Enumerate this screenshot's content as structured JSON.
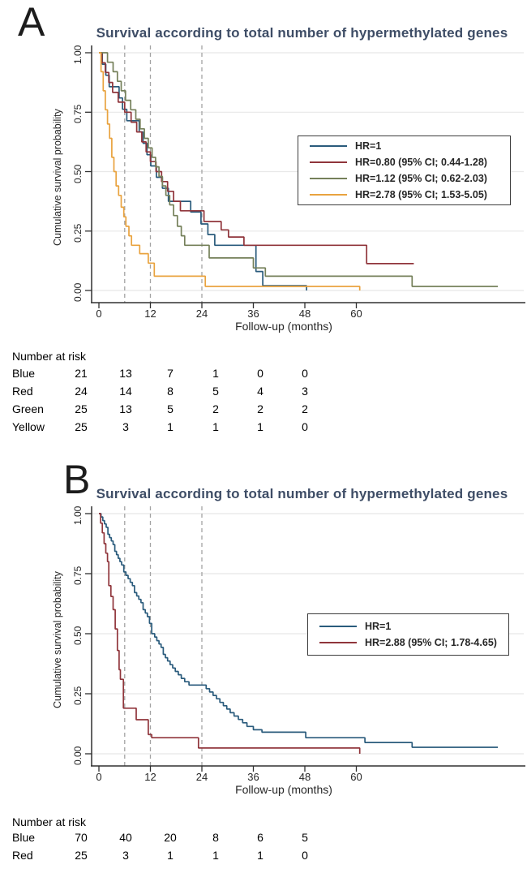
{
  "panel_letters": [
    "A",
    "B"
  ],
  "chart_data": [
    {
      "type": "line",
      "subtype": "kaplan-meier-step",
      "title": "Survival according to total number of hypermethylated genes",
      "xlabel": "Follow-up (months)",
      "ylabel": "Cumulative survival probability",
      "xlim": [
        0,
        99
      ],
      "ylim": [
        0,
        1
      ],
      "xticks": [
        0,
        12,
        24,
        36,
        48,
        60
      ],
      "yticks": [
        {
          "v": 1.0,
          "label": "1.00"
        },
        {
          "v": 0.75,
          "label": "0.75"
        },
        {
          "v": 0.5,
          "label": "0.50"
        },
        {
          "v": 0.25,
          "label": "0.25"
        },
        {
          "v": 0.0,
          "label": "0.00"
        }
      ],
      "dashed_guides_x": [
        6,
        12,
        24
      ],
      "grid": "horizontal",
      "legend_position": "right-middle-box",
      "series": [
        {
          "key": "blue",
          "group": "Blue",
          "name": "HR=1",
          "color": "#2a5b7c",
          "points": [
            [
              0,
              1.0
            ],
            [
              0.8,
              0.952
            ],
            [
              1.6,
              0.905
            ],
            [
              2.4,
              0.857
            ],
            [
              4.7,
              0.81
            ],
            [
              5.5,
              0.762
            ],
            [
              6.5,
              0.714
            ],
            [
              9.4,
              0.667
            ],
            [
              10.3,
              0.619
            ],
            [
              11.2,
              0.571
            ],
            [
              12.1,
              0.524
            ],
            [
              13.4,
              0.476
            ],
            [
              14.8,
              0.43
            ],
            [
              16.2,
              0.375
            ],
            [
              21.4,
              0.33
            ],
            [
              23.8,
              0.28
            ],
            [
              25.4,
              0.235
            ],
            [
              27.0,
              0.19
            ],
            [
              36.6,
              0.08
            ],
            [
              38.2,
              0.02
            ],
            [
              48.0,
              0.02
            ],
            [
              48.4,
              0.0
            ]
          ]
        },
        {
          "key": "red",
          "group": "Red",
          "name": "HR=0.80 (95% CI; 0.44-1.28)",
          "color": "#90353b",
          "points": [
            [
              0,
              1.0
            ],
            [
              0.7,
              0.958
            ],
            [
              1.5,
              0.917
            ],
            [
              2.3,
              0.875
            ],
            [
              3.2,
              0.833
            ],
            [
              4.5,
              0.792
            ],
            [
              6.0,
              0.75
            ],
            [
              7.5,
              0.708
            ],
            [
              8.8,
              0.667
            ],
            [
              10.0,
              0.625
            ],
            [
              11.0,
              0.583
            ],
            [
              12.0,
              0.542
            ],
            [
              13.3,
              0.5
            ],
            [
              14.6,
              0.458
            ],
            [
              16.0,
              0.417
            ],
            [
              17.4,
              0.375
            ],
            [
              19.0,
              0.335
            ],
            [
              24.5,
              0.29
            ],
            [
              28.5,
              0.255
            ],
            [
              30.2,
              0.225
            ],
            [
              33.8,
              0.19
            ],
            [
              62.4,
              0.113
            ],
            [
              73.4,
              0.113
            ]
          ]
        },
        {
          "key": "green",
          "group": "Green",
          "name": "HR=1.12 (95% CI; 0.62-2.03)",
          "color": "#75805a",
          "points": [
            [
              0,
              1.0
            ],
            [
              2.0,
              0.96
            ],
            [
              3.3,
              0.92
            ],
            [
              4.3,
              0.88
            ],
            [
              5.2,
              0.84
            ],
            [
              6.2,
              0.8
            ],
            [
              7.4,
              0.76
            ],
            [
              8.6,
              0.72
            ],
            [
              9.6,
              0.68
            ],
            [
              10.6,
              0.64
            ],
            [
              11.5,
              0.6
            ],
            [
              12.4,
              0.56
            ],
            [
              13.2,
              0.52
            ],
            [
              14.0,
              0.48
            ],
            [
              14.8,
              0.44
            ],
            [
              15.6,
              0.4
            ],
            [
              16.5,
              0.36
            ],
            [
              17.4,
              0.315
            ],
            [
              18.3,
              0.27
            ],
            [
              19.2,
              0.23
            ],
            [
              20.0,
              0.19
            ],
            [
              25.7,
              0.137
            ],
            [
              36.0,
              0.095
            ],
            [
              38.8,
              0.06
            ],
            [
              73.0,
              0.017
            ],
            [
              93.0,
              0.017
            ]
          ]
        },
        {
          "key": "yellow",
          "group": "Yellow",
          "name": "HR=2.78 (95% CI; 1.53-5.05)",
          "color": "#e9a33f",
          "points": [
            [
              0,
              1.0
            ],
            [
              0.5,
              0.92
            ],
            [
              1.0,
              0.84
            ],
            [
              1.5,
              0.76
            ],
            [
              2.0,
              0.7
            ],
            [
              2.5,
              0.64
            ],
            [
              3.0,
              0.56
            ],
            [
              3.5,
              0.5
            ],
            [
              4.0,
              0.44
            ],
            [
              4.6,
              0.4
            ],
            [
              5.2,
              0.35
            ],
            [
              5.8,
              0.31
            ],
            [
              6.3,
              0.27
            ],
            [
              7.0,
              0.23
            ],
            [
              7.6,
              0.19
            ],
            [
              9.5,
              0.155
            ],
            [
              11.5,
              0.115
            ],
            [
              12.9,
              0.06
            ],
            [
              24.8,
              0.017
            ],
            [
              60.6,
              0.017
            ],
            [
              60.8,
              0.0
            ]
          ]
        }
      ],
      "number_at_risk": {
        "header": "Number at risk",
        "time_points": [
          0,
          12,
          24,
          36,
          48,
          60
        ],
        "rows": [
          {
            "group": "Blue",
            "counts": [
              21,
              13,
              7,
              1,
              0,
              0
            ]
          },
          {
            "group": "Red",
            "counts": [
              24,
              14,
              8,
              5,
              4,
              3
            ]
          },
          {
            "group": "Green",
            "counts": [
              25,
              13,
              5,
              2,
              2,
              2
            ]
          },
          {
            "group": "Yellow",
            "counts": [
              25,
              3,
              1,
              1,
              1,
              0
            ]
          }
        ]
      }
    },
    {
      "type": "line",
      "subtype": "kaplan-meier-step",
      "title": "Survival according to total number of hypermethylated genes",
      "xlabel": "Follow-up (months)",
      "ylabel": "Cumulative survival probability",
      "xlim": [
        0,
        99
      ],
      "ylim": [
        0,
        1
      ],
      "xticks": [
        0,
        12,
        24,
        36,
        48,
        60
      ],
      "yticks": [
        {
          "v": 1.0,
          "label": "1.00"
        },
        {
          "v": 0.75,
          "label": "0.75"
        },
        {
          "v": 0.5,
          "label": "0.50"
        },
        {
          "v": 0.25,
          "label": "0.25"
        },
        {
          "v": 0.0,
          "label": "0.00"
        }
      ],
      "dashed_guides_x": [
        6,
        12,
        24
      ],
      "grid": "horizontal",
      "legend_position": "right-middle-box",
      "series": [
        {
          "key": "blue",
          "group": "Blue",
          "name": "HR=1",
          "color": "#2a5b7c",
          "points": [
            [
              0,
              1.0
            ],
            [
              0.5,
              0.986
            ],
            [
              0.9,
              0.971
            ],
            [
              1.3,
              0.957
            ],
            [
              1.7,
              0.943
            ],
            [
              2.1,
              0.914
            ],
            [
              2.5,
              0.9
            ],
            [
              2.9,
              0.886
            ],
            [
              3.3,
              0.871
            ],
            [
              3.7,
              0.843
            ],
            [
              4.1,
              0.829
            ],
            [
              4.5,
              0.814
            ],
            [
              4.9,
              0.8
            ],
            [
              5.3,
              0.786
            ],
            [
              5.8,
              0.757
            ],
            [
              6.3,
              0.743
            ],
            [
              6.8,
              0.729
            ],
            [
              7.3,
              0.714
            ],
            [
              7.8,
              0.7
            ],
            [
              8.3,
              0.671
            ],
            [
              8.8,
              0.657
            ],
            [
              9.3,
              0.643
            ],
            [
              9.8,
              0.629
            ],
            [
              10.3,
              0.6
            ],
            [
              10.8,
              0.586
            ],
            [
              11.3,
              0.571
            ],
            [
              11.8,
              0.543
            ],
            [
              12.3,
              0.5
            ],
            [
              13.0,
              0.486
            ],
            [
              13.5,
              0.471
            ],
            [
              14.0,
              0.457
            ],
            [
              14.5,
              0.443
            ],
            [
              15.0,
              0.414
            ],
            [
              15.5,
              0.4
            ],
            [
              16.0,
              0.386
            ],
            [
              16.6,
              0.371
            ],
            [
              17.2,
              0.357
            ],
            [
              17.8,
              0.343
            ],
            [
              18.5,
              0.329
            ],
            [
              19.2,
              0.314
            ],
            [
              20.0,
              0.3
            ],
            [
              21.0,
              0.286
            ],
            [
              25.0,
              0.271
            ],
            [
              25.8,
              0.257
            ],
            [
              26.6,
              0.243
            ],
            [
              27.4,
              0.229
            ],
            [
              28.2,
              0.214
            ],
            [
              29.0,
              0.2
            ],
            [
              29.8,
              0.186
            ],
            [
              30.6,
              0.171
            ],
            [
              31.5,
              0.157
            ],
            [
              32.5,
              0.143
            ],
            [
              33.5,
              0.129
            ],
            [
              34.5,
              0.114
            ],
            [
              36.0,
              0.1
            ],
            [
              38.0,
              0.09
            ],
            [
              48.2,
              0.067
            ],
            [
              62.0,
              0.047
            ],
            [
              73.0,
              0.027
            ],
            [
              93.0,
              0.027
            ]
          ]
        },
        {
          "key": "red",
          "group": "Red",
          "name": "HR=2.88 (95% CI; 1.78-4.65)",
          "color": "#90353b",
          "points": [
            [
              0,
              1.0
            ],
            [
              0.4,
              0.96
            ],
            [
              0.8,
              0.92
            ],
            [
              1.2,
              0.875
            ],
            [
              1.6,
              0.835
            ],
            [
              2.0,
              0.8
            ],
            [
              2.3,
              0.7
            ],
            [
              2.8,
              0.655
            ],
            [
              3.3,
              0.6
            ],
            [
              3.8,
              0.52
            ],
            [
              4.3,
              0.43
            ],
            [
              4.7,
              0.35
            ],
            [
              5.0,
              0.31
            ],
            [
              5.7,
              0.19
            ],
            [
              8.7,
              0.142
            ],
            [
              11.5,
              0.08
            ],
            [
              12.3,
              0.067
            ],
            [
              23.2,
              0.024
            ],
            [
              60.6,
              0.024
            ],
            [
              60.8,
              0.0
            ]
          ]
        }
      ],
      "number_at_risk": {
        "header": "Number at risk",
        "time_points": [
          0,
          12,
          24,
          36,
          48,
          60
        ],
        "rows": [
          {
            "group": "Blue",
            "counts": [
              70,
              40,
              20,
              8,
              6,
              5
            ]
          },
          {
            "group": "Red",
            "counts": [
              25,
              3,
              1,
              1,
              1,
              0
            ]
          }
        ]
      }
    }
  ]
}
